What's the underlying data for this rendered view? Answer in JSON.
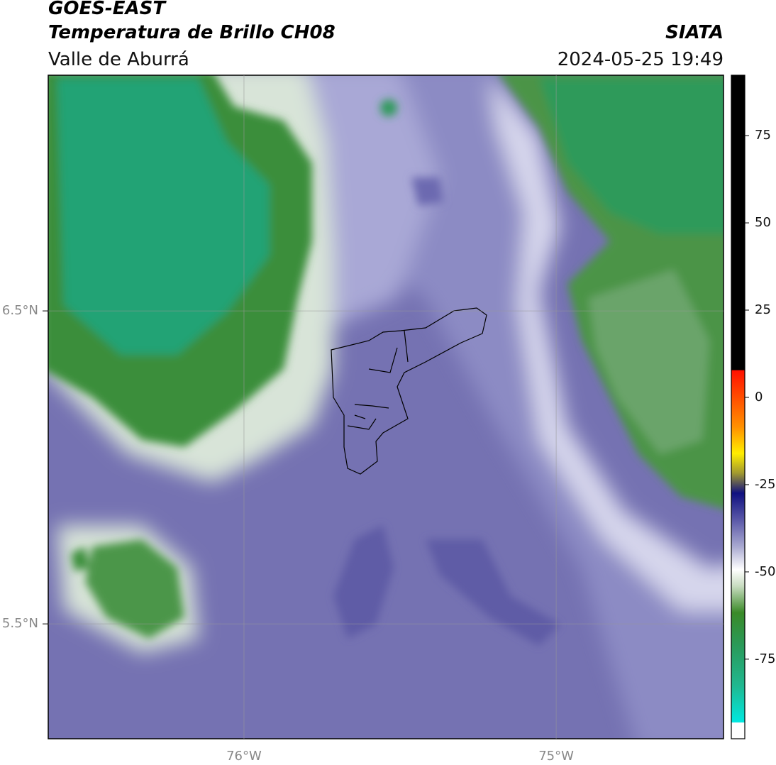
{
  "header": {
    "title": "GOES-EAST",
    "subtitle": "Temperatura de Brillo CH08",
    "region": "Valle de Aburrá",
    "source": "SIATA",
    "timestamp": "2024-05-25 19:49"
  },
  "map": {
    "lonlim": [
      -76.627,
      -74.464
    ],
    "latlim": [
      5.133,
      7.253
    ],
    "lonticks": [
      {
        "value": -76,
        "label": "76°W"
      },
      {
        "value": -75,
        "label": "75°W"
      }
    ],
    "latticks": [
      {
        "value": 6.5,
        "label": "6.5°N"
      },
      {
        "value": 5.5,
        "label": "5.5°N"
      }
    ],
    "grid": true
  },
  "colorbar": {
    "lim": [
      -97.8,
      92.3
    ],
    "ticks": [
      -75,
      -50,
      -25,
      0,
      25,
      50,
      75
    ]
  }
}
